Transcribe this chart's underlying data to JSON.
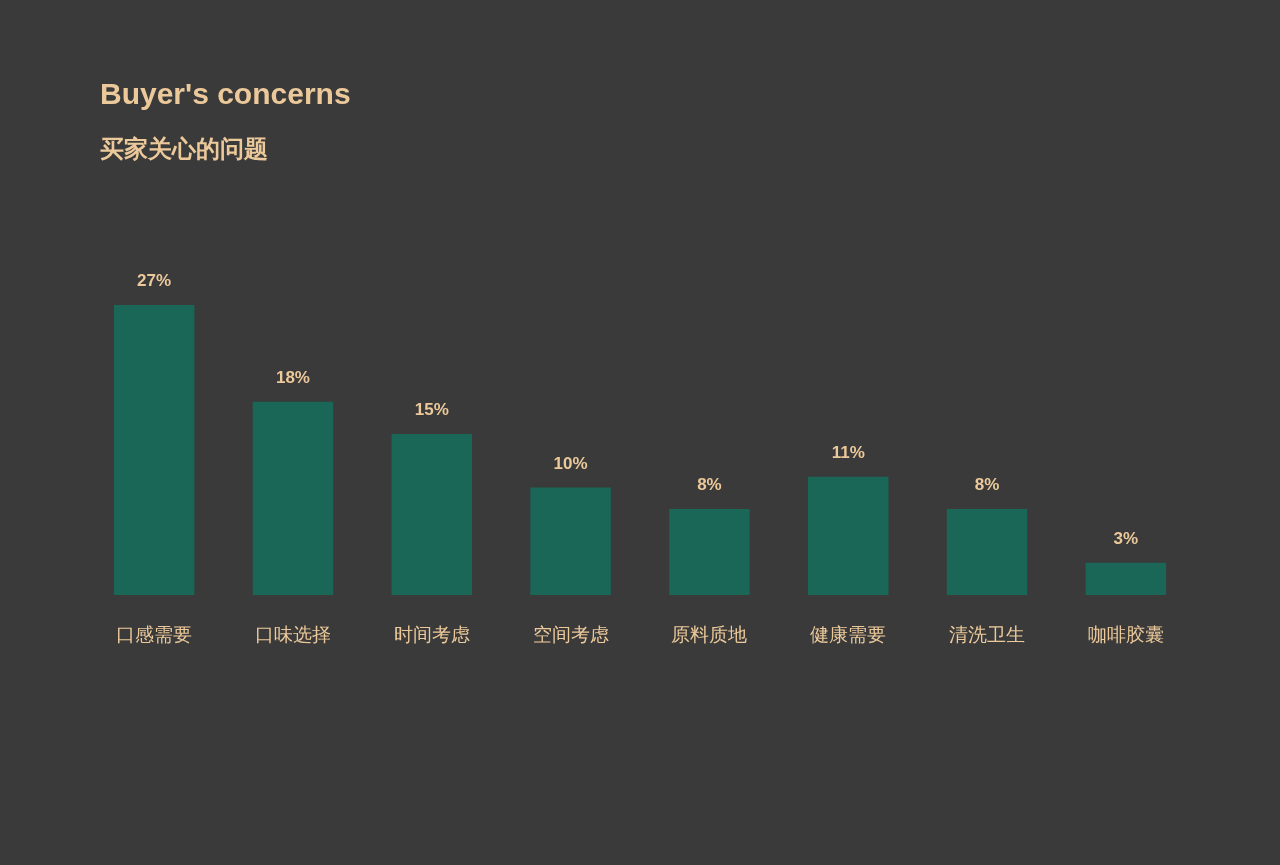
{
  "chart_data": {
    "type": "bar",
    "title": "Buyer's concerns",
    "subtitle": "买家关心的问题",
    "categories": [
      "口感需要",
      "口味选择",
      "时间考虑",
      "空间考虑",
      "原料质地",
      "健康需要",
      "清洗卫生",
      "咖啡胶囊"
    ],
    "values": [
      27,
      18,
      15,
      10,
      8,
      11,
      8,
      3
    ],
    "value_labels": [
      "27%",
      "18%",
      "15%",
      "10%",
      "8%",
      "11%",
      "8%",
      "3%"
    ],
    "color": "#1a6657",
    "grid": false
  }
}
